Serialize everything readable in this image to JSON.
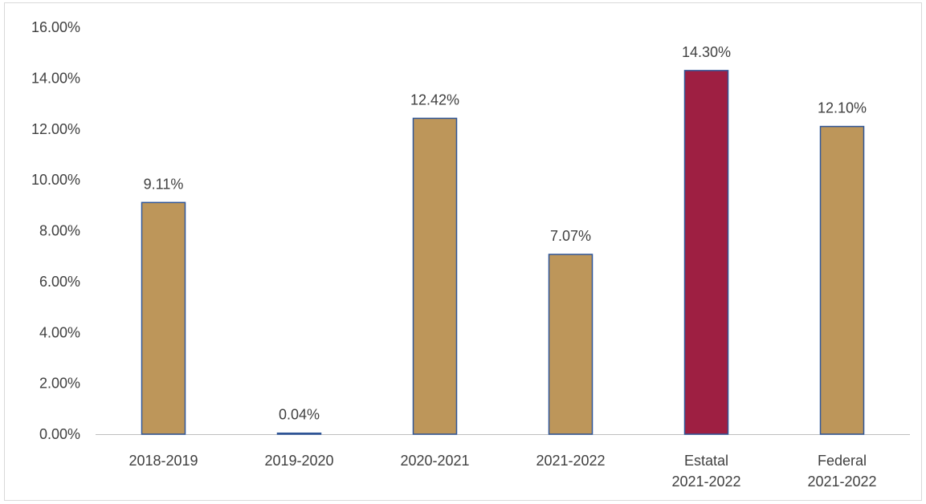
{
  "chart_data": {
    "type": "bar",
    "categories": [
      [
        "2018-2019"
      ],
      [
        "2019-2020"
      ],
      [
        "2020-2021"
      ],
      [
        "2021-2022"
      ],
      [
        "Estatal",
        "2021-2022"
      ],
      [
        "Federal",
        "2021-2022"
      ]
    ],
    "values": [
      9.11,
      0.04,
      12.42,
      7.07,
      14.3,
      12.1
    ],
    "data_labels": [
      "9.11%",
      "0.04%",
      "12.42%",
      "7.07%",
      "14.30%",
      "12.10%"
    ],
    "title": "",
    "xlabel": "",
    "ylabel": "",
    "ylim": [
      0,
      16
    ],
    "yticks": [
      0,
      2,
      4,
      6,
      8,
      10,
      12,
      14,
      16
    ],
    "ytick_labels": [
      "0.00%",
      "2.00%",
      "4.00%",
      "6.00%",
      "8.00%",
      "10.00%",
      "12.00%",
      "14.00%",
      "16.00%"
    ],
    "grid": false,
    "legend": "none",
    "colors": {
      "default_bar": "#BD965A",
      "highlight_bar": "#9E1F42",
      "bar_border": "#2F5597",
      "axis": "#bfbfbf",
      "text": "#404040"
    },
    "highlight_index": 4
  }
}
